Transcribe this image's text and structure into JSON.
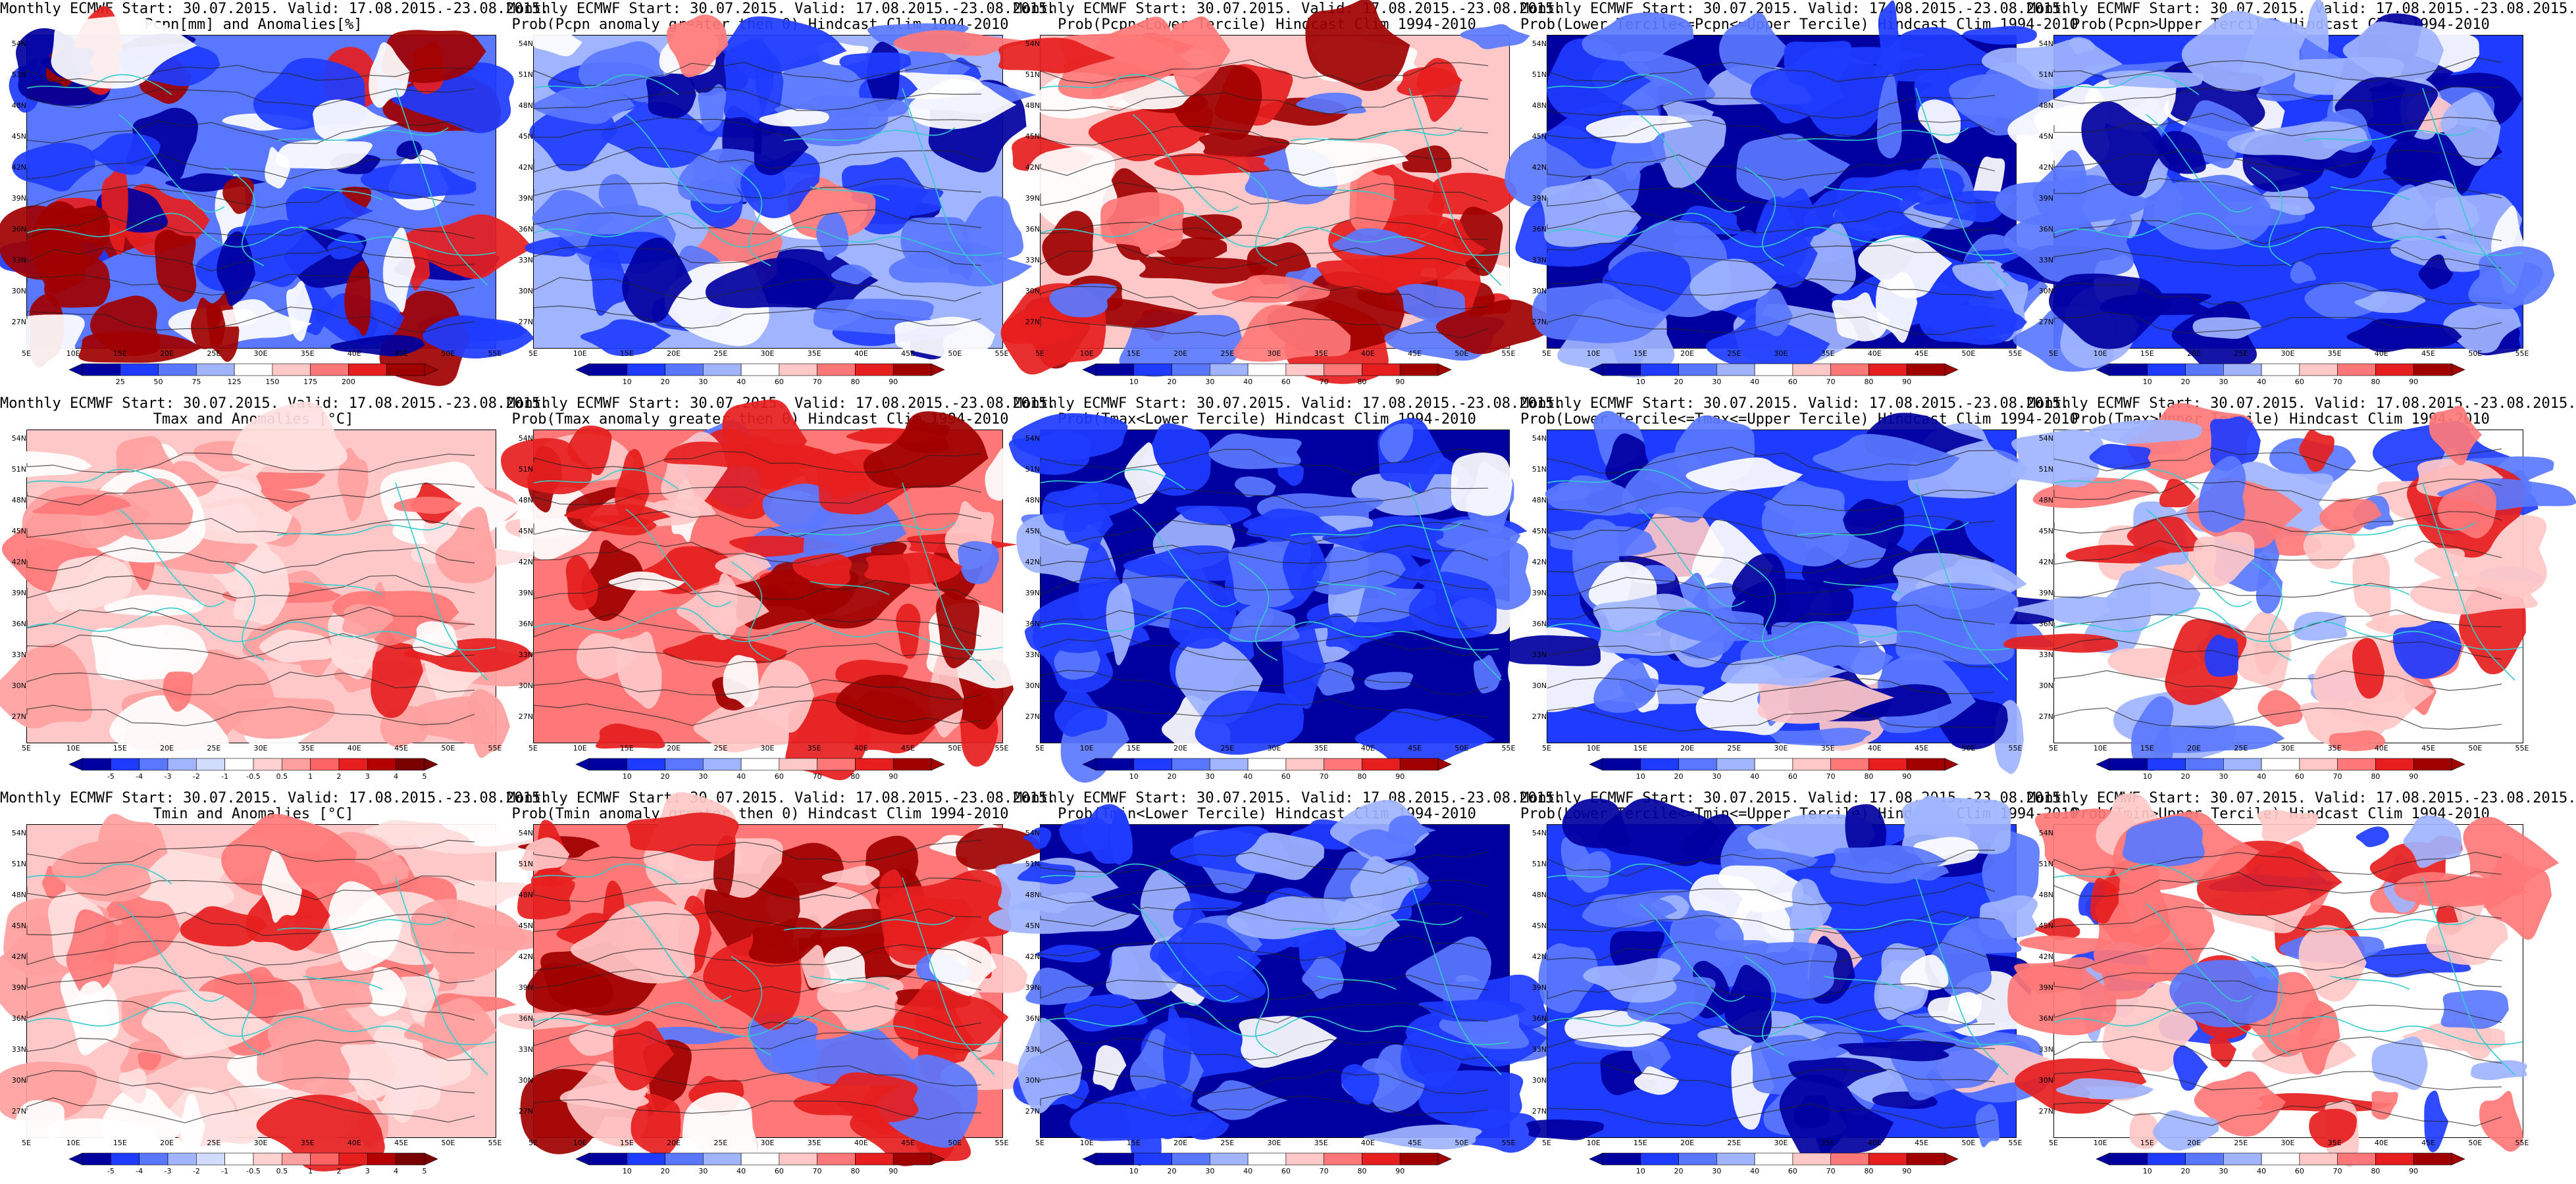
{
  "panels": [
    {
      "title1": "Monthly ECMWF Start: 30.07.2015. Valid: 17.08.2015.-23.08.2015.",
      "title2": "Pcpn[mm] and Anomalies[%]",
      "scheme": "precip",
      "cb": "pct",
      "colorbar": {
        "labels": [
          "25",
          "50",
          "75",
          "125",
          "150",
          "175",
          "200"
        ]
      }
    },
    {
      "title1": "Monthly ECMWF Start: 30.07.2015. Valid: 17.08.2015.-23.08.2015.",
      "title2": "Prob(Pcpn anomaly greater then 0) Hindcast Clim 1994-2010",
      "scheme": "mix",
      "cb": "prob",
      "colorbar": {
        "labels": [
          "10",
          "20",
          "30",
          "40",
          "60",
          "70",
          "80",
          "90"
        ]
      }
    },
    {
      "title1": "Monthly ECMWF Start: 30.07.2015. Valid: 17.08.2015.-23.08.2015.",
      "title2": "Prob(Pcpn<Lower Tercile) Hindcast Clim 1994-2010",
      "scheme": "red-south",
      "cb": "prob",
      "colorbar": {
        "labels": [
          "10",
          "20",
          "30",
          "40",
          "60",
          "70",
          "80",
          "90"
        ]
      }
    },
    {
      "title1": "Monthly ECMWF Start: 30.07.2015. Valid: 17.08.2015.-23.08.2015.",
      "title2": "Prob(Lower Tercile<=Pcpn<=Upper Tercile) Hindcast Clim 1994-2010",
      "scheme": "deep-blue",
      "cb": "prob",
      "colorbar": {
        "labels": [
          "10",
          "20",
          "30",
          "40",
          "60",
          "70",
          "80",
          "90"
        ]
      }
    },
    {
      "title1": "Monthly ECMWF Start: 30.07.2015. Valid: 17.08.2015.-23.08.2015.",
      "title2": "Prob(Pcpn>Upper Tercile) Hindcast Clim 1994-2010",
      "scheme": "blue",
      "cb": "prob",
      "colorbar": {
        "labels": [
          "10",
          "20",
          "30",
          "40",
          "60",
          "70",
          "80",
          "90"
        ]
      }
    },
    {
      "title1": "Monthly ECMWF Start: 30.07.2015. Valid: 17.08.2015.-23.08.2015.",
      "title2": "Tmax and Anomalies [°C]",
      "scheme": "light-red",
      "cb": "anom",
      "colorbar": {
        "labels": [
          "-5",
          "-4",
          "-3",
          "-2",
          "-1",
          "-0.5",
          "0.5",
          "1",
          "2",
          "3",
          "4",
          "5"
        ]
      }
    },
    {
      "title1": "Monthly ECMWF Start: 30.07.2015. Valid: 17.08.2015.-23.08.2015.",
      "title2": "Prob(Tmax anomaly greater then 0) Hindcast Clim 1994-2010",
      "scheme": "red",
      "cb": "prob",
      "colorbar": {
        "labels": [
          "10",
          "20",
          "30",
          "40",
          "60",
          "70",
          "80",
          "90"
        ]
      }
    },
    {
      "title1": "Monthly ECMWF Start: 30.07.2015. Valid: 17.08.2015.-23.08.2015.",
      "title2": "Prob(Tmax<Lower Tercile) Hindcast Clim 1994-2010",
      "scheme": "deep-blue",
      "cb": "prob",
      "colorbar": {
        "labels": [
          "10",
          "20",
          "30",
          "40",
          "60",
          "70",
          "80",
          "90"
        ]
      }
    },
    {
      "title1": "Monthly ECMWF Start: 30.07.2015. Valid: 17.08.2015.-23.08.2015.",
      "title2": "Prob(Lower Tercile<=Tmax<=Upper Tercile) Hindcast Clim 1994-2010",
      "scheme": "blue",
      "cb": "prob",
      "colorbar": {
        "labels": [
          "10",
          "20",
          "30",
          "40",
          "60",
          "70",
          "80",
          "90"
        ]
      }
    },
    {
      "title1": "Monthly ECMWF Start: 30.07.2015. Valid: 17.08.2015.-23.08.2015.",
      "title2": "Prob(Tmax>Upper Tercile) Hindcast Clim 1994-2010",
      "scheme": "mix-red",
      "cb": "prob",
      "colorbar": {
        "labels": [
          "10",
          "20",
          "30",
          "40",
          "60",
          "70",
          "80",
          "90"
        ]
      }
    },
    {
      "title1": "Monthly ECMWF Start: 30.07.2015. Valid: 17.08.2015.-23.08.2015.",
      "title2": "Tmin and Anomalies [°C]",
      "scheme": "light-red",
      "cb": "anom",
      "colorbar": {
        "labels": [
          "-5",
          "-4",
          "-3",
          "-2",
          "-1",
          "-0.5",
          "0.5",
          "1",
          "2",
          "3",
          "4",
          "5"
        ]
      }
    },
    {
      "title1": "Monthly ECMWF Start: 30.07.2015. Valid: 17.08.2015.-23.08.2015.",
      "title2": "Prob(Tmin anomaly greater then 0) Hindcast Clim 1994-2010",
      "scheme": "red",
      "cb": "prob",
      "colorbar": {
        "labels": [
          "10",
          "20",
          "30",
          "40",
          "60",
          "70",
          "80",
          "90"
        ]
      }
    },
    {
      "title1": "Monthly ECMWF Start: 30.07.2015. Valid: 17.08.2015.-23.08.2015.",
      "title2": "Prob(Tmin<Lower Tercile) Hindcast Clim 1994-2010",
      "scheme": "deep-blue",
      "cb": "prob",
      "colorbar": {
        "labels": [
          "10",
          "20",
          "30",
          "40",
          "60",
          "70",
          "80",
          "90"
        ]
      }
    },
    {
      "title1": "Monthly ECMWF Start: 30.07.2015. Valid: 17.08.2015.-23.08.2015.",
      "title2": "Prob(Lower Tercile<=Tmin<=Upper Tercile) Hindcast Clim 1994-2010",
      "scheme": "blue",
      "cb": "prob",
      "colorbar": {
        "labels": [
          "10",
          "20",
          "30",
          "40",
          "60",
          "70",
          "80",
          "90"
        ]
      }
    },
    {
      "title1": "Monthly ECMWF Start: 30.07.2015. Valid: 17.08.2015.-23.08.2015.",
      "title2": "Prob(Tmin>Upper Tercile) Hindcast Clim 1994-2010",
      "scheme": "mix-red",
      "cb": "prob",
      "colorbar": {
        "labels": [
          "10",
          "20",
          "30",
          "40",
          "60",
          "70",
          "80",
          "90"
        ]
      }
    }
  ],
  "axes": {
    "lat_labels": [
      "54N",
      "51N",
      "48N",
      "45N",
      "42N",
      "39N",
      "36N",
      "33N",
      "30N",
      "27N"
    ],
    "lon_labels": [
      "5E",
      "10E",
      "15E",
      "20E",
      "25E",
      "30E",
      "35E",
      "40E",
      "45E",
      "50E",
      "55E"
    ]
  },
  "colors": {
    "prob_scale": [
      "#0000a0",
      "#1e3cff",
      "#5a78ff",
      "#a0b4ff",
      "#ffffff",
      "#ffc8c8",
      "#ff7878",
      "#e61e1e",
      "#a00000"
    ],
    "anom_scale": [
      "#0000a0",
      "#1e3cff",
      "#5a78ff",
      "#a0b4ff",
      "#d2dcff",
      "#ffffff",
      "#ffd2d2",
      "#ffa0a0",
      "#ff6464",
      "#e61e1e",
      "#b40000",
      "#7a0000"
    ],
    "pct_scale": [
      "#0000a0",
      "#1e3cff",
      "#5a78ff",
      "#a0b4ff",
      "#ffffff",
      "#ffc8c8",
      "#ff7878",
      "#e61e1e",
      "#a00000"
    ],
    "coast": "#33cccc",
    "contour": "#222222"
  }
}
